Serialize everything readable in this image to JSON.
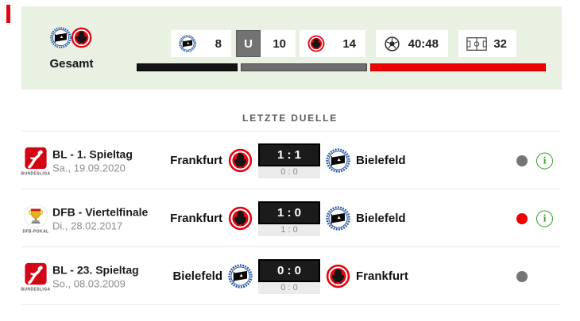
{
  "summary": {
    "label": "Gesamt",
    "clubs": [
      "bielefeld",
      "frankfurt"
    ],
    "stats": {
      "home": {
        "logo": "bielefeld",
        "value": "8"
      },
      "draw": {
        "badge": "U",
        "value": "10"
      },
      "away": {
        "logo": "frankfurt",
        "value": "14"
      },
      "goals": {
        "icon": "ball-icon",
        "value": "40:48"
      },
      "games": {
        "icon": "pitch-icon",
        "value": "32"
      }
    },
    "bar": {
      "home": 8,
      "draw": 10,
      "away": 14,
      "home_color": "#141414",
      "draw_color": "#6e6e6e",
      "away_color": "#ee0000"
    }
  },
  "section_title": "LETZTE DUELLE",
  "matches": [
    {
      "competition": "BL - 1. Spieltag",
      "date": "Sa., 19.09.2020",
      "competition_logo": "bundesliga",
      "competition_logo_caption": "BUNDESLIGA",
      "home": {
        "name": "Frankfurt",
        "logo": "frankfurt"
      },
      "away": {
        "name": "Bielefeld",
        "logo": "bielefeld"
      },
      "score": "1 : 1",
      "halftime": "0 : 0",
      "result_color": "#757575",
      "info_icon": "i"
    },
    {
      "competition": "DFB - Viertelfinale",
      "date": "Di., 28.02.2017",
      "competition_logo": "dfb",
      "competition_logo_caption": "DFB-POKAL",
      "home": {
        "name": "Frankfurt",
        "logo": "frankfurt"
      },
      "away": {
        "name": "Bielefeld",
        "logo": "bielefeld"
      },
      "score": "1 : 0",
      "halftime": "1 : 0",
      "result_color": "#ee0000",
      "info_icon": "i"
    },
    {
      "competition": "BL - 23. Spieltag",
      "date": "So., 08.03.2009",
      "competition_logo": "bundesliga",
      "competition_logo_caption": "BUNDESLIGA",
      "home": {
        "name": "Bielefeld",
        "logo": "bielefeld"
      },
      "away": {
        "name": "Frankfurt",
        "logo": "frankfurt"
      },
      "score": "0 : 0",
      "halftime": "0 : 0",
      "result_color": "#757575"
    }
  ]
}
